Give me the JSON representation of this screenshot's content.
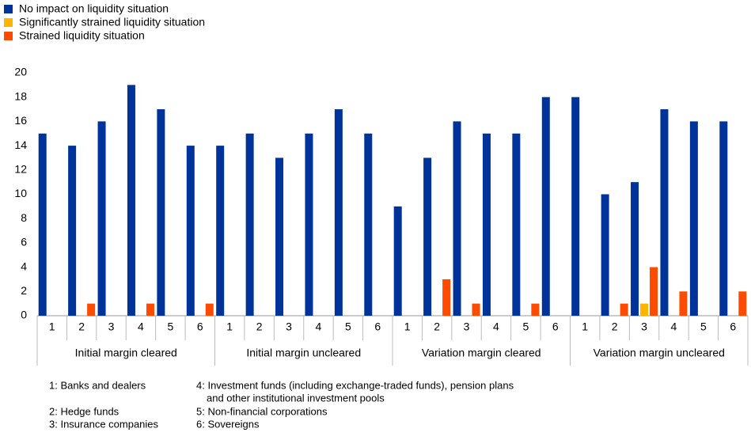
{
  "chart_data": {
    "type": "bar",
    "categories": [
      "1",
      "2",
      "3",
      "4",
      "5",
      "6",
      "1",
      "2",
      "3",
      "4",
      "5",
      "6",
      "1",
      "2",
      "3",
      "4",
      "5",
      "6",
      "1",
      "2",
      "3",
      "4",
      "5",
      "6"
    ],
    "groups": [
      "Initial margin cleared",
      "Initial margin uncleared",
      "Variation margin cleared",
      "Variation margin uncleared"
    ],
    "series": [
      {
        "name": "No impact on liquidity situation",
        "color": "#003399",
        "values": [
          15,
          14,
          16,
          19,
          17,
          14,
          14,
          15,
          13,
          15,
          17,
          15,
          9,
          13,
          16,
          15,
          15,
          18,
          18,
          10,
          11,
          17,
          16,
          16
        ]
      },
      {
        "name": "Significantly strained liquidity situation",
        "color": "#ffb400",
        "values": [
          0,
          0,
          0,
          0,
          0,
          0,
          0,
          0,
          0,
          0,
          0,
          0,
          0,
          0,
          0,
          0,
          0,
          0,
          0,
          0,
          1,
          0,
          0,
          0
        ]
      },
      {
        "name": "Strained liquidity situation",
        "color": "#ff4b00",
        "values": [
          0,
          1,
          0,
          1,
          0,
          1,
          0,
          0,
          0,
          0,
          0,
          0,
          0,
          3,
          1,
          0,
          1,
          0,
          0,
          1,
          4,
          2,
          0,
          2
        ]
      }
    ],
    "ylim": [
      0,
      20
    ],
    "yticks": [
      0,
      2,
      4,
      6,
      8,
      10,
      12,
      14,
      16,
      18,
      20
    ],
    "grid": false,
    "legend": "top-left",
    "notes": [
      [
        "1: Banks and dealers"
      ],
      [
        "2: Hedge funds"
      ],
      [
        "3: Insurance companies"
      ],
      [
        "4: Investment funds (including exchange-traded funds), pension plans",
        "and other institutional investment pools"
      ],
      [
        "5: Non-financial corporations"
      ],
      [
        "6: Sovereigns"
      ]
    ]
  }
}
